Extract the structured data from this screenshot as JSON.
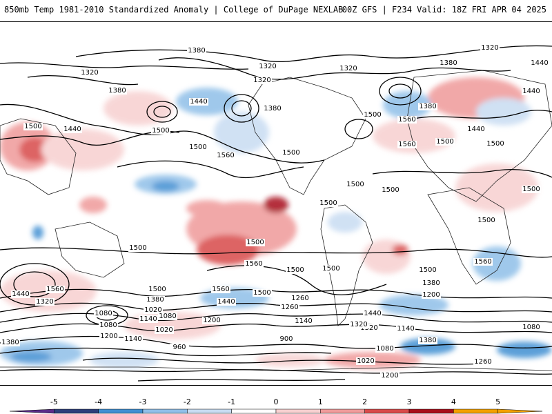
{
  "header": {
    "title_left": "850mb Temp 1981-2010 Standardized Anomaly | College of DuPage NEXLAB",
    "title_right": "00Z GFS | F234 Valid: 18Z FRI APR 04 2025"
  },
  "colorbar": {
    "ticks": [
      "-5",
      "-4",
      "-3",
      "-2",
      "-1",
      "0",
      "1",
      "2",
      "3",
      "4",
      "5"
    ],
    "colors": [
      "#5b2d8a",
      "#2c3f7a",
      "#3f8fd2",
      "#8fbfe8",
      "#c8dcf2",
      "#ffffff",
      "#f7d0d0",
      "#ef9a9a",
      "#d84a4a",
      "#a80f1a",
      "#f2a000"
    ]
  },
  "contour_labels": {
    "values": [
      "1380",
      "1320",
      "1320",
      "1320",
      "1320",
      "1380",
      "1380",
      "1320",
      "1380",
      "1440",
      "1440",
      "1500",
      "1440",
      "1380",
      "1500",
      "1500",
      "1560",
      "1560",
      "1500",
      "1500",
      "1500",
      "1500",
      "1560",
      "1500",
      "1500",
      "1500",
      "1440",
      "1440",
      "1500",
      "1500",
      "1560",
      "1500",
      "1500",
      "1560",
      "1500",
      "1500",
      "1560",
      "1500",
      "1500",
      "1560",
      "1440",
      "1320",
      "1380",
      "1260",
      "1200",
      "1140",
      "1080",
      "1020",
      "960",
      "900",
      "1080",
      "1200",
      "1140",
      "1080",
      "1020",
      "1140",
      "1200",
      "1260",
      "1320",
      "1380",
      "1440",
      "1500",
      "1200",
      "1260",
      "1380",
      "1140",
      "1080",
      "1020",
      "1320",
      "1440",
      "1380",
      "1080"
    ]
  }
}
